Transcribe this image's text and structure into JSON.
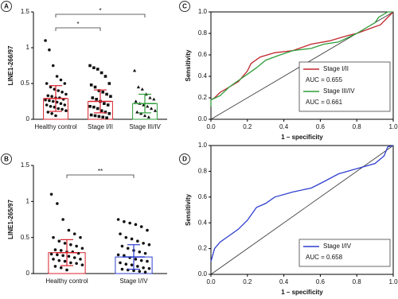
{
  "chart_data": [
    {
      "type": "bar",
      "panel": "A",
      "ylabel": "LINE1-266/97",
      "categories": [
        "Healthy control",
        "Stage I/II",
        "Stage III/IV"
      ],
      "colors": [
        "#d9232e",
        "#d9232e",
        "#2e9e3a"
      ],
      "markers": [
        "circle",
        "square",
        "triangle"
      ],
      "values": [
        0.29,
        0.25,
        0.22
      ],
      "errors": [
        0.18,
        0.16,
        0.13
      ],
      "points": [
        [
          1.1,
          0.97,
          0.75,
          0.6,
          0.55,
          0.5,
          0.5,
          0.45,
          0.42,
          0.4,
          0.38,
          0.35,
          0.33,
          0.32,
          0.3,
          0.3,
          0.28,
          0.27,
          0.26,
          0.25,
          0.24,
          0.22,
          0.2,
          0.2,
          0.18,
          0.17,
          0.15,
          0.14,
          0.12,
          0.1,
          0.08,
          0.05
        ],
        [
          0.75,
          0.72,
          0.7,
          0.65,
          0.6,
          0.5,
          0.48,
          0.45,
          0.4,
          0.38,
          0.35,
          0.32,
          0.3,
          0.28,
          0.25,
          0.22,
          0.2,
          0.18,
          0.17,
          0.15,
          0.12,
          0.1,
          0.08,
          0.06,
          0.05,
          0.04,
          0.03,
          0.02
        ],
        [
          0.68,
          0.45,
          0.42,
          0.35,
          0.3,
          0.28,
          0.25,
          0.22,
          0.2,
          0.18,
          0.15,
          0.12,
          0.1,
          0.08,
          0.05,
          0.03
        ]
      ],
      "annotations": [
        "*",
        "*"
      ],
      "ylim": [
        0,
        1.5
      ],
      "yticks": [
        0,
        0.5,
        1,
        1.5
      ]
    },
    {
      "type": "line",
      "panel": "C",
      "xlabel": "1 – specificity",
      "ylabel": "Sensitivity",
      "series": [
        {
          "name": "Stage I/II",
          "color": "#c0262d",
          "annotation": "AUC = 0.655",
          "x": [
            0,
            0.02,
            0.05,
            0.1,
            0.15,
            0.2,
            0.22,
            0.27,
            0.35,
            0.45,
            0.55,
            0.65,
            0.75,
            0.8,
            0.88,
            0.93,
            0.97,
            1
          ],
          "values": [
            0.18,
            0.2,
            0.25,
            0.3,
            0.35,
            0.45,
            0.52,
            0.58,
            0.62,
            0.64,
            0.7,
            0.73,
            0.78,
            0.8,
            0.85,
            0.88,
            0.95,
            1
          ]
        },
        {
          "name": "Stage III/IV",
          "color": "#2e9e3a",
          "annotation": "AUC = 0.661",
          "x": [
            0,
            0,
            0.05,
            0.1,
            0.15,
            0.2,
            0.25,
            0.3,
            0.38,
            0.45,
            0.55,
            0.62,
            0.7,
            0.8,
            0.85,
            0.9,
            0.92,
            0.97,
            1
          ],
          "values": [
            0.12,
            0.18,
            0.22,
            0.3,
            0.36,
            0.42,
            0.48,
            0.55,
            0.6,
            0.64,
            0.66,
            0.7,
            0.72,
            0.8,
            0.85,
            0.9,
            0.95,
            1,
            1
          ]
        }
      ],
      "xlim": [
        0,
        1
      ],
      "ylim": [
        0,
        1
      ],
      "xticks": [
        {
          "value": 0,
          "label": "0.0"
        },
        0.2,
        0.4,
        0.6,
        0.8,
        {
          "value": 1,
          "label": "1.0"
        }
      ],
      "yticks": [
        {
          "value": 0,
          "label": "0.0"
        },
        0.2,
        0.4,
        0.6,
        0.8,
        {
          "value": 1,
          "label": "1.0"
        }
      ]
    },
    {
      "type": "bar",
      "panel": "B",
      "ylabel": "LINE1-265/97",
      "categories": [
        "Healthy control",
        "Stage I/IV"
      ],
      "colors": [
        "#d9232e",
        "#2f3fcf"
      ],
      "markers": [
        "circle",
        "circle"
      ],
      "values": [
        0.29,
        0.23
      ],
      "errors": [
        0.18,
        0.17
      ],
      "points": [
        [
          1.1,
          0.97,
          0.75,
          0.6,
          0.55,
          0.5,
          0.5,
          0.45,
          0.42,
          0.4,
          0.38,
          0.35,
          0.33,
          0.32,
          0.3,
          0.3,
          0.28,
          0.27,
          0.26,
          0.25,
          0.24,
          0.22,
          0.2,
          0.2,
          0.18,
          0.17,
          0.15,
          0.14,
          0.12,
          0.1,
          0.08,
          0.05
        ],
        [
          0.75,
          0.72,
          0.7,
          0.68,
          0.65,
          0.6,
          0.55,
          0.5,
          0.48,
          0.45,
          0.42,
          0.4,
          0.38,
          0.35,
          0.32,
          0.3,
          0.28,
          0.26,
          0.25,
          0.22,
          0.2,
          0.18,
          0.17,
          0.15,
          0.13,
          0.12,
          0.1,
          0.08,
          0.07,
          0.06,
          0.05,
          0.04,
          0.03,
          0.02
        ]
      ],
      "annotations": [
        "**"
      ],
      "ylim": [
        0,
        1.5
      ],
      "yticks": [
        0,
        0.5,
        1,
        1.5
      ]
    },
    {
      "type": "line",
      "panel": "D",
      "xlabel": "1 – specificity",
      "ylabel": "Sensitivity",
      "series": [
        {
          "name": "Stage I/IV",
          "color": "#2f3fcf",
          "annotation": "AUC = 0.658",
          "x": [
            0,
            0.02,
            0.05,
            0.1,
            0.15,
            0.2,
            0.25,
            0.3,
            0.35,
            0.45,
            0.55,
            0.62,
            0.7,
            0.8,
            0.9,
            0.95,
            0.97,
            1
          ],
          "values": [
            0.1,
            0.2,
            0.25,
            0.3,
            0.35,
            0.42,
            0.52,
            0.55,
            0.6,
            0.64,
            0.67,
            0.72,
            0.78,
            0.82,
            0.86,
            0.92,
            0.99,
            1
          ]
        }
      ],
      "xlim": [
        0,
        1
      ],
      "ylim": [
        0,
        1
      ],
      "xticks": [
        {
          "value": 0,
          "label": "0.0"
        },
        0.2,
        0.4,
        0.6,
        0.8,
        {
          "value": 1,
          "label": "1.0"
        }
      ],
      "yticks": [
        {
          "value": 0,
          "label": "0.0"
        },
        0.2,
        0.4,
        0.6,
        0.8,
        {
          "value": 1,
          "label": "1.0"
        }
      ]
    }
  ]
}
